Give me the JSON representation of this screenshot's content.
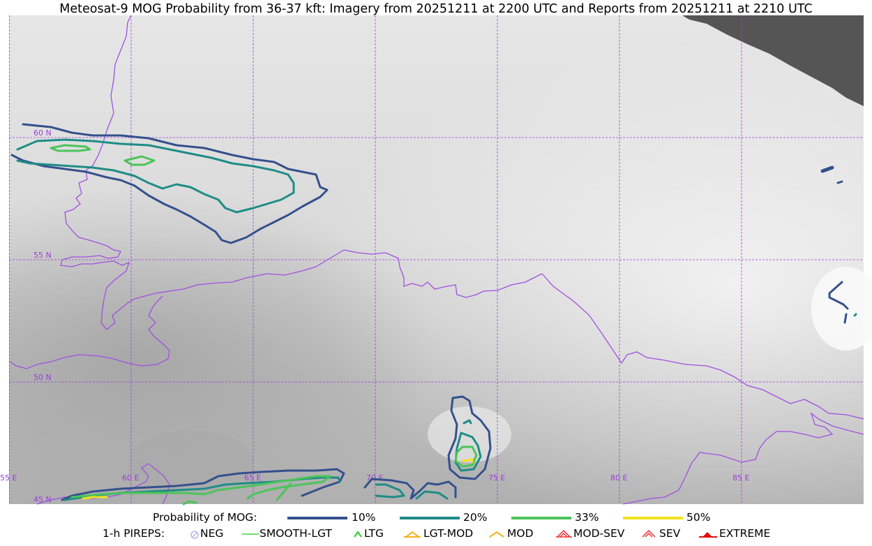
{
  "title": "Meteosat-9 MOG Probability from 36-37 kft: Imagery from 20251211 at 2200 UTC and Reports from 20251211 at 2210 UTC",
  "map": {
    "lat_labels": [
      "60 N",
      "55 N",
      "50 N",
      "45 N"
    ],
    "lon_labels": [
      "55 E",
      "60 E",
      "65 E",
      "70 E",
      "75 E",
      "80 E",
      "85 E"
    ],
    "grid_color": "#9a3fd6",
    "border_color": "#a050e0",
    "no_data_color": "#555555"
  },
  "legend": {
    "probability": {
      "label": "Probability of MOG:",
      "items": [
        {
          "label": "10%",
          "color": "#34508c"
        },
        {
          "label": "20%",
          "color": "#1e8c86"
        },
        {
          "label": "33%",
          "color": "#4cc45a"
        },
        {
          "label": "50%",
          "color": "#f2e21e"
        }
      ]
    },
    "pireps": {
      "label": "1-h PIREPS:",
      "items": [
        {
          "label": "NEG",
          "icon": "neg-circle-icon",
          "color": "#b9b4f0"
        },
        {
          "label": "SMOOTH-LGT",
          "icon": "smooth-lgt-line-icon",
          "color": "#3ed43e"
        },
        {
          "label": "LTG",
          "icon": "ltg-caret-icon",
          "color": "#2ec82e"
        },
        {
          "label": "LGT-MOD",
          "icon": "lgt-mod-caret-icon",
          "color": "#f2b21e"
        },
        {
          "label": "MOD",
          "icon": "mod-caret-icon",
          "color": "#f2b21e"
        },
        {
          "label": "MOD-SEV",
          "icon": "mod-sev-caret-icon",
          "color": "#e83030"
        },
        {
          "label": "SEV",
          "icon": "sev-caret-icon",
          "color": "#e83030"
        },
        {
          "label": "EXTREME",
          "icon": "extreme-caret-icon",
          "color": "#e01010"
        }
      ]
    }
  }
}
